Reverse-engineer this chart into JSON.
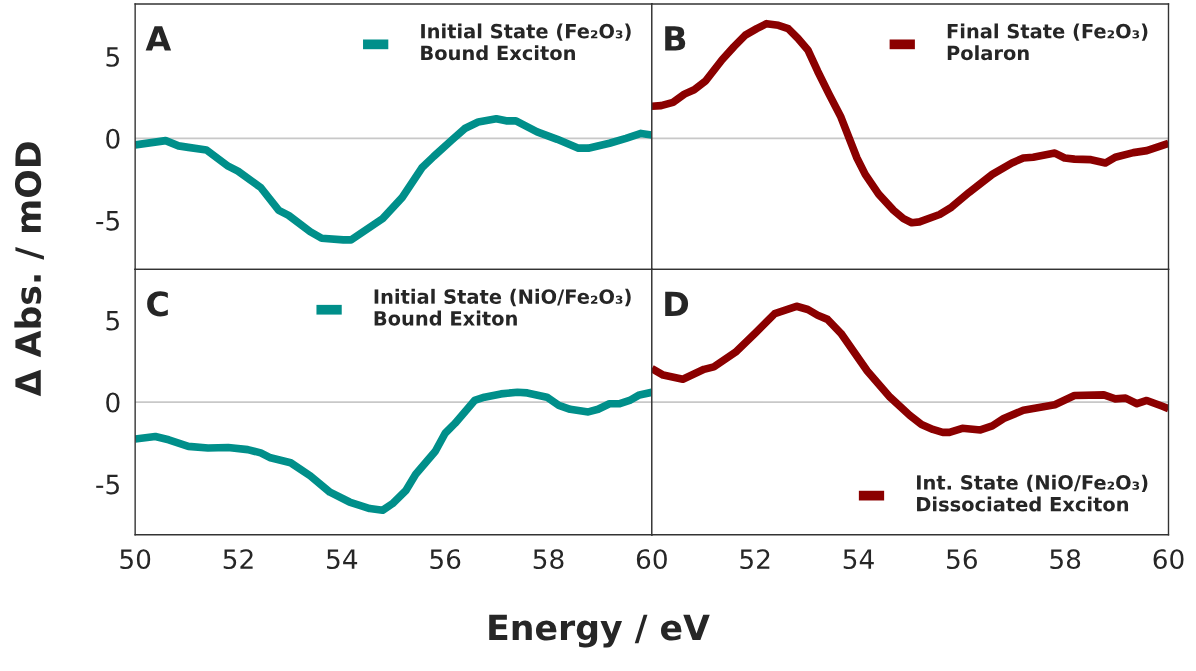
{
  "chart_data": [
    {
      "type": "line",
      "ylabel": "Δ Abs. / mOD",
      "annotations": [
        "A"
      ],
      "xlim": [
        50,
        60
      ],
      "ylim": [
        -8,
        8.2
      ],
      "xticks": [
        50,
        52,
        54,
        56,
        58,
        60
      ],
      "yticks": [
        -5,
        0,
        5
      ],
      "tick_labels": "y",
      "legend": "top right",
      "ref_lines": [
        {
          "axis": "y",
          "value": 0,
          "color": "#c8c8c8"
        }
      ],
      "series": [
        {
          "name": "Initial State (Fe₂O₃)\nBound Exciton",
          "color": "#008f8a",
          "x": [
            50,
            50.59,
            50.84,
            51.03,
            51.38,
            51.8,
            51.99,
            52.43,
            52.78,
            52.97,
            53.39,
            53.61,
            54.03,
            54.18,
            54.79,
            55.17,
            55.55,
            55.78,
            56.13,
            56.38,
            56.64,
            56.99,
            57.18,
            57.37,
            57.78,
            58.17,
            58.58,
            58.77,
            59.18,
            59.5,
            59.79,
            60
          ],
          "values": [
            -0.4,
            -0.14,
            -0.46,
            -0.55,
            -0.71,
            -1.7,
            -2.0,
            -3.0,
            -4.4,
            -4.7,
            -5.7,
            -6.1,
            -6.2,
            -6.2,
            -4.9,
            -3.6,
            -1.8,
            -1.1,
            -0.1,
            0.6,
            1.0,
            1.2,
            1.07,
            1.07,
            0.4,
            -0.06,
            -0.6,
            -0.6,
            -0.3,
            0,
            0.3,
            0.2
          ]
        }
      ]
    },
    {
      "type": "line",
      "annotations": [
        "B"
      ],
      "xlim": [
        50,
        60
      ],
      "ylim": [
        -8,
        8.2
      ],
      "xticks": [
        50,
        52,
        54,
        56,
        58,
        60
      ],
      "yticks": [
        -5,
        0,
        5
      ],
      "tick_labels": false,
      "legend": "top right",
      "ref_lines": [
        {
          "axis": "y",
          "value": 0,
          "color": "#c8c8c8"
        }
      ],
      "series": [
        {
          "name": "Final State (Fe₂O₃)\nPolaron",
          "color": "#8b0000",
          "x": [
            50,
            50.18,
            50.41,
            50.63,
            50.82,
            51.04,
            51.36,
            51.59,
            51.81,
            52.03,
            52.22,
            52.45,
            52.64,
            52.83,
            53.02,
            53.21,
            53.43,
            53.66,
            53.97,
            54.13,
            54.39,
            54.68,
            54.87,
            55.03,
            55.18,
            55.57,
            55.8,
            56.14,
            56.59,
            56.97,
            57.19,
            57.38,
            57.8,
            57.99,
            58.18,
            58.5,
            58.78,
            58.97,
            59.32,
            59.58,
            60
          ],
          "values": [
            1.96,
            2.0,
            2.2,
            2.7,
            2.97,
            3.5,
            4.8,
            5.6,
            6.3,
            6.7,
            7.0,
            6.9,
            6.7,
            6.1,
            5.4,
            4.1,
            2.7,
            1.3,
            -1.2,
            -2.2,
            -3.4,
            -4.4,
            -4.9,
            -5.15,
            -5.1,
            -4.65,
            -4.2,
            -3.3,
            -2.2,
            -1.5,
            -1.2,
            -1.15,
            -0.9,
            -1.2,
            -1.27,
            -1.3,
            -1.5,
            -1.15,
            -0.87,
            -0.75,
            -0.3
          ]
        }
      ]
    },
    {
      "type": "line",
      "xlabel": "Energy / eV",
      "annotations": [
        "C"
      ],
      "xlim": [
        50,
        60
      ],
      "ylim": [
        -8.1,
        8.1
      ],
      "xticks": [
        50,
        52,
        54,
        56,
        58,
        60
      ],
      "yticks": [
        -5,
        0,
        5
      ],
      "legend": "top right",
      "ref_lines": [
        {
          "axis": "y",
          "value": 0,
          "color": "#c8c8c8"
        }
      ],
      "series": [
        {
          "name": "Initial State (NiO/Fe₂O₃)\nBound Exiton",
          "color": "#008f8a",
          "x": [
            50,
            50.39,
            50.65,
            51.03,
            51.41,
            51.8,
            52.18,
            52.43,
            52.62,
            53.01,
            53.39,
            53.77,
            54.15,
            54.54,
            54.79,
            54.98,
            55.24,
            55.43,
            55.81,
            56.0,
            56.19,
            56.57,
            56.76,
            57.08,
            57.4,
            57.59,
            57.97,
            58.2,
            58.42,
            58.77,
            58.96,
            59.18,
            59.38,
            59.57,
            59.76,
            60
          ],
          "values": [
            -2.25,
            -2.1,
            -2.3,
            -2.7,
            -2.8,
            -2.77,
            -2.9,
            -3.1,
            -3.4,
            -3.7,
            -4.5,
            -5.5,
            -6.1,
            -6.5,
            -6.6,
            -6.2,
            -5.4,
            -4.4,
            -3.0,
            -1.9,
            -1.3,
            0.1,
            0.3,
            0.5,
            0.6,
            0.56,
            0.3,
            -0.2,
            -0.44,
            -0.6,
            -0.44,
            -0.1,
            -0.1,
            0.1,
            0.44,
            0.6
          ]
        }
      ]
    },
    {
      "type": "line",
      "annotations": [
        "D"
      ],
      "xlim": [
        50,
        60
      ],
      "ylim": [
        -8.1,
        8.1
      ],
      "xticks": [
        {
          "value": 50,
          "label": null
        },
        52,
        54,
        56,
        58,
        60
      ],
      "yticks": [
        -5,
        0,
        5
      ],
      "tick_labels": "x",
      "legend": "bottom right",
      "ref_lines": [
        {
          "axis": "y",
          "value": 0,
          "color": "#c8c8c8"
        }
      ],
      "series": [
        {
          "name": "Int. State (NiO/Fe₂O₃)\nDissociated Exciton",
          "color": "#8b0000",
          "x": [
            50,
            50.22,
            50.6,
            51.01,
            51.2,
            51.62,
            52.0,
            52.38,
            52.8,
            53.02,
            53.21,
            53.4,
            53.66,
            54.17,
            54.61,
            54.99,
            55.22,
            55.44,
            55.63,
            55.76,
            56.01,
            56.36,
            56.59,
            56.81,
            57.19,
            57.8,
            58.18,
            58.75,
            58.97,
            59.17,
            59.39,
            59.58,
            59.87,
            60
          ],
          "values": [
            2.05,
            1.65,
            1.4,
            2.0,
            2.15,
            3.05,
            4.2,
            5.4,
            5.85,
            5.65,
            5.3,
            5.05,
            4.2,
            1.9,
            0.3,
            -0.8,
            -1.37,
            -1.67,
            -1.85,
            -1.85,
            -1.6,
            -1.7,
            -1.45,
            -1.0,
            -0.5,
            -0.16,
            0.4,
            0.44,
            0.2,
            0.24,
            -0.1,
            0.1,
            -0.24,
            -0.4
          ]
        }
      ]
    }
  ]
}
